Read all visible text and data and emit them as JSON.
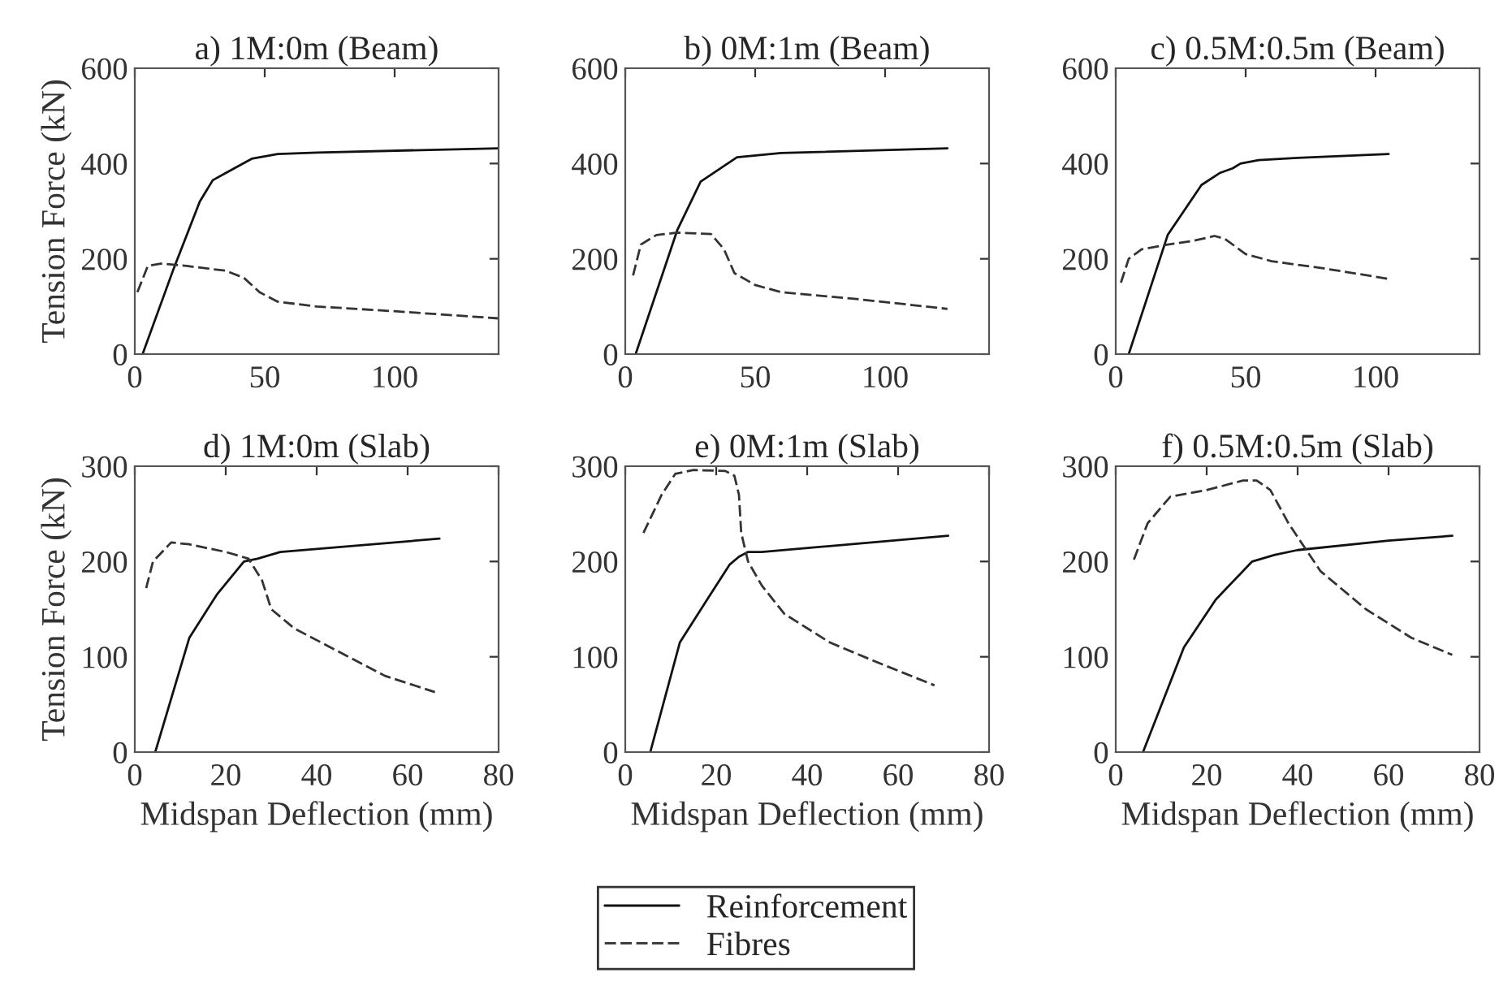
{
  "chart_data": [
    {
      "type": "line",
      "title": "a) 1M:0m (Beam)",
      "ylabel": "Tension Force (kN)",
      "xlim": [
        0,
        140
      ],
      "xticks": [
        0,
        50,
        100
      ],
      "ylim": [
        0,
        600
      ],
      "yticks": [
        0,
        200,
        400,
        600
      ],
      "legend": "bottom",
      "series": [
        {
          "name": "Reinforcement",
          "color": "#111111",
          "line_style": "solid",
          "x": [
            3,
            15,
            25,
            30,
            35,
            40,
            45,
            55,
            70,
            140
          ],
          "values": [
            0,
            180,
            320,
            365,
            380,
            395,
            410,
            420,
            423,
            432
          ]
        },
        {
          "name": "Fibres",
          "color": "#333333",
          "line_style": "dashed",
          "x": [
            1,
            5,
            10,
            20,
            35,
            42,
            48,
            55,
            70,
            100,
            140
          ],
          "values": [
            130,
            185,
            190,
            185,
            175,
            160,
            130,
            110,
            100,
            90,
            75
          ]
        }
      ]
    },
    {
      "type": "line",
      "title": "b) 0M:1m (Beam)",
      "xlim": [
        0,
        140
      ],
      "xticks": [
        0,
        50,
        100
      ],
      "ylim": [
        0,
        600
      ],
      "yticks": [
        0,
        200,
        400,
        600
      ],
      "legend": "bottom",
      "series": [
        {
          "name": "Reinforcement",
          "color": "#111111",
          "line_style": "solid",
          "x": [
            4,
            20,
            29,
            43,
            60,
            124
          ],
          "values": [
            0,
            260,
            362,
            413,
            422,
            432
          ]
        },
        {
          "name": "Fibres",
          "color": "#333333",
          "line_style": "dashed",
          "x": [
            3,
            6,
            12,
            20,
            33,
            38,
            42,
            50,
            60,
            90,
            124
          ],
          "values": [
            165,
            230,
            250,
            255,
            252,
            220,
            170,
            145,
            130,
            115,
            95
          ]
        }
      ]
    },
    {
      "type": "line",
      "title": "c) 0.5M:0.5m (Beam)",
      "xlim": [
        0,
        140
      ],
      "xticks": [
        0,
        50,
        100
      ],
      "ylim": [
        0,
        600
      ],
      "yticks": [
        0,
        200,
        400,
        600
      ],
      "legend": "bottom",
      "series": [
        {
          "name": "Reinforcement",
          "color": "#111111",
          "line_style": "solid",
          "x": [
            5,
            20,
            33,
            40,
            45,
            48,
            55,
            70,
            105
          ],
          "values": [
            0,
            250,
            355,
            380,
            390,
            400,
            407,
            412,
            420
          ]
        },
        {
          "name": "Fibres",
          "color": "#333333",
          "line_style": "dashed",
          "x": [
            2,
            5,
            10,
            20,
            30,
            38,
            42,
            50,
            60,
            80,
            105
          ],
          "values": [
            150,
            200,
            220,
            230,
            238,
            248,
            242,
            210,
            195,
            180,
            158
          ]
        }
      ]
    },
    {
      "type": "line",
      "title": "d) 1M:0m (Slab)",
      "xlabel": "Midspan Deflection (mm)",
      "ylabel": "Tension Force (kN)",
      "xlim": [
        0,
        80
      ],
      "xticks": [
        0,
        20,
        40,
        60,
        80
      ],
      "ylim": [
        0,
        300
      ],
      "yticks": [
        0,
        100,
        200,
        300
      ],
      "legend": "bottom",
      "series": [
        {
          "name": "Reinforcement",
          "color": "#111111",
          "line_style": "solid",
          "x": [
            4.5,
            12,
            18,
            24,
            27,
            32,
            67
          ],
          "values": [
            0,
            120,
            165,
            200,
            203,
            210,
            224
          ]
        },
        {
          "name": "Fibres",
          "color": "#333333",
          "line_style": "dashed",
          "x": [
            2.5,
            4,
            8,
            12,
            20,
            25,
            28,
            30,
            35,
            45,
            55,
            66
          ],
          "values": [
            172,
            200,
            220,
            218,
            210,
            203,
            180,
            150,
            130,
            105,
            80,
            63
          ]
        }
      ]
    },
    {
      "type": "line",
      "title": "e) 0M:1m (Slab)",
      "xlabel": "Midspan Deflection (mm)",
      "xlim": [
        0,
        80
      ],
      "xticks": [
        0,
        20,
        40,
        60,
        80
      ],
      "ylim": [
        0,
        300
      ],
      "yticks": [
        0,
        100,
        200,
        300
      ],
      "legend": "bottom",
      "series": [
        {
          "name": "Reinforcement",
          "color": "#111111",
          "line_style": "solid",
          "x": [
            5.5,
            12,
            18,
            23,
            25,
            27,
            30,
            71
          ],
          "values": [
            0,
            115,
            160,
            197,
            205,
            210,
            210,
            227
          ]
        },
        {
          "name": "Fibres",
          "color": "#333333",
          "line_style": "dashed",
          "x": [
            4,
            8,
            11,
            15,
            22,
            24,
            25,
            25.5,
            27,
            30,
            35,
            45,
            55,
            68
          ],
          "values": [
            230,
            270,
            292,
            296,
            295,
            290,
            270,
            230,
            200,
            175,
            145,
            115,
            95,
            70
          ]
        }
      ]
    },
    {
      "type": "line",
      "title": "f) 0.5M:0.5m (Slab)",
      "xlabel": "Midspan Deflection (mm)",
      "xlim": [
        0,
        80
      ],
      "xticks": [
        0,
        20,
        40,
        60,
        80
      ],
      "ylim": [
        0,
        300
      ],
      "yticks": [
        0,
        100,
        200,
        300
      ],
      "legend": "bottom",
      "series": [
        {
          "name": "Reinforcement",
          "color": "#111111",
          "line_style": "solid",
          "x": [
            6,
            15,
            22,
            30,
            35,
            40,
            60,
            74
          ],
          "values": [
            0,
            110,
            160,
            200,
            207,
            212,
            222,
            227
          ]
        },
        {
          "name": "Fibres",
          "color": "#333333",
          "line_style": "dashed",
          "x": [
            4,
            7,
            12,
            20,
            28,
            31,
            34,
            38,
            45,
            55,
            65,
            74
          ],
          "values": [
            202,
            240,
            268,
            275,
            285,
            285,
            275,
            240,
            190,
            150,
            120,
            102
          ]
        }
      ]
    }
  ]
}
